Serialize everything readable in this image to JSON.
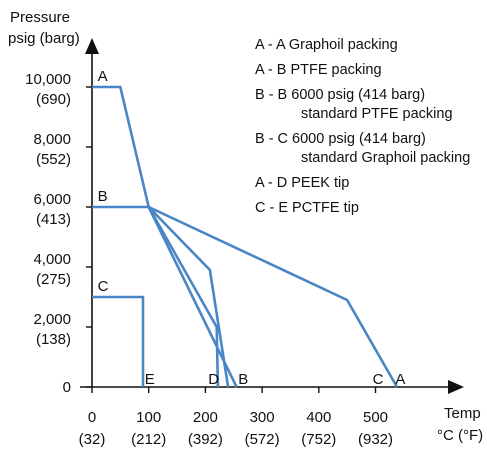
{
  "chart_data": {
    "type": "line",
    "title": "",
    "ylabel_lines": [
      "Pressure",
      "psig (barg)"
    ],
    "xlabel_lines": [
      "Temp",
      "°C (°F)"
    ],
    "xlim": [
      0,
      530
    ],
    "ylim": [
      0,
      10000
    ],
    "x_ticks": [
      {
        "value": 0,
        "label": "0",
        "sublabel": "(32)"
      },
      {
        "value": 100,
        "label": "100",
        "sublabel": "(212)"
      },
      {
        "value": 200,
        "label": "200",
        "sublabel": "(392)"
      },
      {
        "value": 300,
        "label": "300",
        "sublabel": "(572)"
      },
      {
        "value": 400,
        "label": "400",
        "sublabel": "(752)"
      },
      {
        "value": 500,
        "label": "500",
        "sublabel": "(932)"
      }
    ],
    "y_ticks": [
      {
        "value": 0,
        "label": "0",
        "sublabel": ""
      },
      {
        "value": 2000,
        "label": "2,000",
        "sublabel": "(138)"
      },
      {
        "value": 4000,
        "label": "4,000",
        "sublabel": "(275)"
      },
      {
        "value": 6000,
        "label": "6,000",
        "sublabel": "(413)"
      },
      {
        "value": 8000,
        "label": "8,000",
        "sublabel": "(552)"
      },
      {
        "value": 10000,
        "label": "10,000",
        "sublabel": "(690)"
      }
    ],
    "line_color": "#4a86c5",
    "series": [
      {
        "name": "A - A",
        "x": [
          0,
          50,
          100,
          450,
          538
        ],
        "y": [
          10000,
          10000,
          6000,
          2900,
          0
        ]
      },
      {
        "name": "A - B",
        "x": [
          100,
          255
        ],
        "y": [
          6000,
          0
        ]
      },
      {
        "name": "B - B",
        "x": [
          0,
          100,
          208,
          240
        ],
        "y": [
          6000,
          6000,
          3900,
          0
        ]
      },
      {
        "name": "B - C",
        "x": [
          100,
          220,
          222
        ],
        "y": [
          6000,
          2000,
          0
        ]
      },
      {
        "name": "C",
        "x": [
          0,
          90,
          90
        ],
        "y": [
          3000,
          3000,
          0
        ]
      }
    ],
    "point_labels": [
      {
        "text": "A",
        "x": 10,
        "y": 10000
      },
      {
        "text": "B",
        "x": 10,
        "y": 6000
      },
      {
        "text": "C",
        "x": 10,
        "y": 3000
      },
      {
        "text": "E",
        "x": 93,
        "y": 0
      },
      {
        "text": "D",
        "x": 205,
        "y": 0
      },
      {
        "text": "B",
        "x": 258,
        "y": 0
      },
      {
        "text": "C",
        "x": 495,
        "y": 0
      },
      {
        "text": "A",
        "x": 535,
        "y": 0
      }
    ],
    "legend": [
      {
        "lines": [
          "A - A  Graphoil packing"
        ]
      },
      {
        "lines": [
          "A - B  PTFE packing"
        ]
      },
      {
        "lines": [
          "B - B  6000 psig (414 barg)",
          "standard PTFE packing"
        ]
      },
      {
        "lines": [
          "B - C  6000 psig (414 barg)",
          "standard Graphoil packing"
        ]
      },
      {
        "lines": [
          "A - D  PEEK tip"
        ]
      },
      {
        "lines": [
          "C - E  PCTFE tip"
        ]
      }
    ]
  }
}
